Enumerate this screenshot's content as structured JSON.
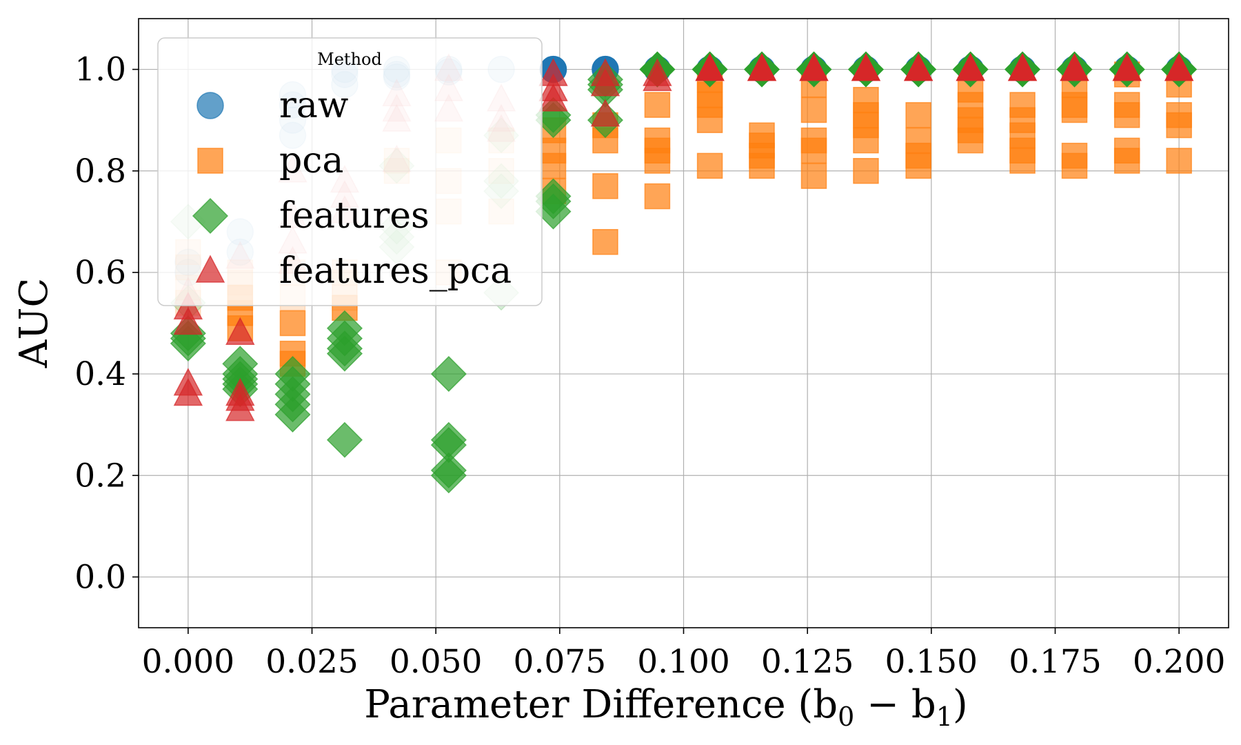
{
  "chart_data": {
    "type": "scatter",
    "xlabel": "Parameter Difference (b",
    "xlabel_sub0": "0",
    "xlabel_minus": " − b",
    "xlabel_sub1": "1",
    "xlabel_close": ")",
    "ylabel": "AUC",
    "xlim": [
      -0.01,
      0.21
    ],
    "ylim": [
      -0.1,
      1.1
    ],
    "xticks": [
      0.0,
      0.025,
      0.05,
      0.075,
      0.1,
      0.125,
      0.15,
      0.175,
      0.2
    ],
    "xtick_labels": [
      "0.000",
      "0.025",
      "0.050",
      "0.075",
      "0.100",
      "0.125",
      "0.150",
      "0.175",
      "0.200"
    ],
    "yticks": [
      0.0,
      0.2,
      0.4,
      0.6,
      0.8,
      1.0
    ],
    "ytick_labels": [
      "0.0",
      "0.2",
      "0.4",
      "0.6",
      "0.8",
      "1.0"
    ],
    "grid": true,
    "legend": {
      "title": "Method",
      "placement": "upper-left",
      "entries": [
        "raw",
        "pca",
        "features",
        "features_pca"
      ]
    },
    "series": [
      {
        "name": "raw",
        "marker": "circle",
        "color": "#1f77b4",
        "points": [
          [
            0.0,
            0.62,
            0.2
          ],
          [
            0.0,
            0.6,
            0.2
          ],
          [
            0.0105,
            0.68,
            0.2
          ],
          [
            0.0105,
            0.64,
            0.2
          ],
          [
            0.0211,
            0.93,
            0.2
          ],
          [
            0.0211,
            0.9,
            0.2
          ],
          [
            0.0211,
            0.87,
            0.2
          ],
          [
            0.0211,
            0.95,
            0.2
          ],
          [
            0.0316,
            0.99,
            0.2
          ],
          [
            0.0316,
            0.97,
            0.2
          ],
          [
            0.0316,
            1.0,
            0.2
          ],
          [
            0.0421,
            1.0,
            0.2
          ],
          [
            0.0421,
            0.99,
            0.2
          ],
          [
            0.0421,
            0.985,
            0.2
          ],
          [
            0.0526,
            1.0,
            0.2
          ],
          [
            0.0526,
            0.995,
            0.2
          ],
          [
            0.0632,
            1.0,
            0.2
          ],
          [
            0.0737,
            1.0,
            1.0
          ],
          [
            0.0842,
            1.0,
            1.0
          ],
          [
            0.0947,
            1.0,
            1.0
          ],
          [
            0.1053,
            1.0,
            1.0
          ],
          [
            0.1158,
            1.0,
            1.0
          ],
          [
            0.1263,
            1.0,
            1.0
          ],
          [
            0.1368,
            1.0,
            1.0
          ],
          [
            0.1474,
            1.0,
            1.0
          ],
          [
            0.1579,
            1.0,
            1.0
          ],
          [
            0.1684,
            1.0,
            1.0
          ],
          [
            0.1789,
            1.0,
            1.0
          ],
          [
            0.1895,
            1.0,
            1.0
          ],
          [
            0.2,
            1.0,
            1.0
          ]
        ]
      },
      {
        "name": "pca",
        "marker": "square",
        "color": "#ff7f0e",
        "points": [
          [
            0.0,
            0.64,
            0.2
          ],
          [
            0.0,
            0.61,
            0.2
          ],
          [
            0.0,
            0.57,
            0.2
          ],
          [
            0.0,
            0.54,
            0.2
          ],
          [
            0.0105,
            0.55,
            0.7
          ],
          [
            0.0105,
            0.52,
            0.7
          ],
          [
            0.0105,
            0.49,
            0.7
          ],
          [
            0.0105,
            0.58,
            0.2
          ],
          [
            0.0105,
            0.6,
            0.2
          ],
          [
            0.0211,
            0.5,
            0.7
          ],
          [
            0.0211,
            0.44,
            0.7
          ],
          [
            0.0211,
            0.42,
            0.7
          ],
          [
            0.0211,
            0.55,
            0.2
          ],
          [
            0.0211,
            0.6,
            0.2
          ],
          [
            0.0316,
            0.53,
            0.7
          ],
          [
            0.0316,
            0.58,
            0.2
          ],
          [
            0.0316,
            0.6,
            0.2
          ],
          [
            0.0316,
            0.55,
            0.2
          ],
          [
            0.0421,
            0.82,
            0.2
          ],
          [
            0.0421,
            0.8,
            0.2
          ],
          [
            0.0526,
            0.86,
            0.2
          ],
          [
            0.0526,
            0.78,
            0.2
          ],
          [
            0.0526,
            0.72,
            0.2
          ],
          [
            0.0526,
            0.6,
            0.2
          ],
          [
            0.0632,
            0.86,
            0.2
          ],
          [
            0.0632,
            0.8,
            0.2
          ],
          [
            0.0632,
            0.72,
            0.2
          ],
          [
            0.0737,
            0.88,
            0.7
          ],
          [
            0.0737,
            0.84,
            0.7
          ],
          [
            0.0737,
            0.81,
            0.7
          ],
          [
            0.0737,
            0.76,
            0.7
          ],
          [
            0.0842,
            0.89,
            0.7
          ],
          [
            0.0842,
            0.86,
            0.7
          ],
          [
            0.0842,
            0.77,
            0.7
          ],
          [
            0.0842,
            0.66,
            0.7
          ],
          [
            0.0947,
            0.93,
            0.7
          ],
          [
            0.0947,
            0.86,
            0.7
          ],
          [
            0.0947,
            0.84,
            0.7
          ],
          [
            0.0947,
            0.82,
            0.7
          ],
          [
            0.0947,
            0.75,
            0.7
          ],
          [
            0.1053,
            0.98,
            0.7
          ],
          [
            0.1053,
            0.95,
            0.7
          ],
          [
            0.1053,
            0.93,
            0.7
          ],
          [
            0.1053,
            0.9,
            0.7
          ],
          [
            0.1053,
            0.81,
            0.7
          ],
          [
            0.1158,
            0.87,
            0.7
          ],
          [
            0.1158,
            0.85,
            0.7
          ],
          [
            0.1158,
            0.83,
            0.7
          ],
          [
            0.1158,
            0.81,
            0.7
          ],
          [
            0.1263,
            0.97,
            0.7
          ],
          [
            0.1263,
            0.92,
            0.7
          ],
          [
            0.1263,
            0.86,
            0.7
          ],
          [
            0.1263,
            0.84,
            0.7
          ],
          [
            0.1263,
            0.79,
            0.7
          ],
          [
            0.1368,
            0.94,
            0.7
          ],
          [
            0.1368,
            0.91,
            0.7
          ],
          [
            0.1368,
            0.89,
            0.7
          ],
          [
            0.1368,
            0.86,
            0.7
          ],
          [
            0.1368,
            0.8,
            0.7
          ],
          [
            0.1474,
            0.91,
            0.7
          ],
          [
            0.1474,
            0.86,
            0.7
          ],
          [
            0.1474,
            0.83,
            0.7
          ],
          [
            0.1474,
            0.81,
            0.7
          ],
          [
            0.1579,
            0.96,
            0.7
          ],
          [
            0.1579,
            0.93,
            0.7
          ],
          [
            0.1579,
            0.9,
            0.7
          ],
          [
            0.1579,
            0.88,
            0.7
          ],
          [
            0.1579,
            0.86,
            0.7
          ],
          [
            0.1684,
            0.93,
            0.7
          ],
          [
            0.1684,
            0.9,
            0.7
          ],
          [
            0.1684,
            0.87,
            0.7
          ],
          [
            0.1684,
            0.84,
            0.7
          ],
          [
            0.1684,
            0.82,
            0.7
          ],
          [
            0.1789,
            0.97,
            0.7
          ],
          [
            0.1789,
            0.93,
            0.7
          ],
          [
            0.1789,
            0.92,
            0.7
          ],
          [
            0.1789,
            0.83,
            0.7
          ],
          [
            0.1789,
            0.81,
            0.7
          ],
          [
            0.1895,
            0.99,
            0.7
          ],
          [
            0.1895,
            0.93,
            0.7
          ],
          [
            0.1895,
            0.91,
            0.7
          ],
          [
            0.1895,
            0.84,
            0.7
          ],
          [
            0.1895,
            0.82,
            0.7
          ],
          [
            0.2,
            0.97,
            0.7
          ],
          [
            0.2,
            0.91,
            0.7
          ],
          [
            0.2,
            0.89,
            0.7
          ],
          [
            0.2,
            0.82,
            0.7
          ]
        ]
      },
      {
        "name": "features",
        "marker": "diamond",
        "color": "#2ca02c",
        "points": [
          [
            0.0,
            0.7,
            0.2
          ],
          [
            0.0,
            0.54,
            0.2
          ],
          [
            0.0,
            0.48,
            0.7
          ],
          [
            0.0,
            0.47,
            0.7
          ],
          [
            0.0,
            0.46,
            0.7
          ],
          [
            0.0105,
            0.42,
            0.7
          ],
          [
            0.0105,
            0.4,
            0.7
          ],
          [
            0.0105,
            0.39,
            0.7
          ],
          [
            0.0105,
            0.38,
            0.7
          ],
          [
            0.0105,
            0.37,
            0.7
          ],
          [
            0.0211,
            0.4,
            0.7
          ],
          [
            0.0211,
            0.38,
            0.7
          ],
          [
            0.0211,
            0.36,
            0.7
          ],
          [
            0.0211,
            0.34,
            0.7
          ],
          [
            0.0211,
            0.32,
            0.7
          ],
          [
            0.0316,
            0.49,
            0.7
          ],
          [
            0.0316,
            0.47,
            0.7
          ],
          [
            0.0316,
            0.45,
            0.7
          ],
          [
            0.0316,
            0.44,
            0.7
          ],
          [
            0.0316,
            0.27,
            0.7
          ],
          [
            0.0421,
            0.81,
            0.2
          ],
          [
            0.0421,
            0.69,
            0.2
          ],
          [
            0.0421,
            0.67,
            0.2
          ],
          [
            0.0421,
            0.65,
            0.2
          ],
          [
            0.0526,
            0.4,
            0.7
          ],
          [
            0.0526,
            0.27,
            0.7
          ],
          [
            0.0526,
            0.26,
            0.7
          ],
          [
            0.0526,
            0.21,
            0.7
          ],
          [
            0.0526,
            0.2,
            0.7
          ],
          [
            0.0632,
            0.87,
            0.2
          ],
          [
            0.0632,
            0.78,
            0.2
          ],
          [
            0.0632,
            0.76,
            0.2
          ],
          [
            0.0632,
            0.56,
            0.2
          ],
          [
            0.0737,
            0.91,
            0.7
          ],
          [
            0.0737,
            0.9,
            0.7
          ],
          [
            0.0737,
            0.75,
            0.7
          ],
          [
            0.0737,
            0.74,
            0.7
          ],
          [
            0.0737,
            0.72,
            0.7
          ],
          [
            0.0842,
            0.98,
            0.7
          ],
          [
            0.0842,
            0.97,
            0.7
          ],
          [
            0.0842,
            0.96,
            0.7
          ],
          [
            0.0842,
            0.9,
            0.7
          ],
          [
            0.0947,
            1.0,
            1.0
          ],
          [
            0.1053,
            1.0,
            1.0
          ],
          [
            0.1158,
            1.0,
            1.0
          ],
          [
            0.1263,
            1.0,
            1.0
          ],
          [
            0.1368,
            1.0,
            1.0
          ],
          [
            0.1474,
            1.0,
            1.0
          ],
          [
            0.1579,
            1.0,
            1.0
          ],
          [
            0.1684,
            1.0,
            1.0
          ],
          [
            0.1789,
            1.0,
            1.0
          ],
          [
            0.1895,
            1.0,
            1.0
          ],
          [
            0.2,
            1.0,
            1.0
          ]
        ]
      },
      {
        "name": "features_pca",
        "marker": "triangle",
        "color": "#d62728",
        "points": [
          [
            0.0,
            0.56,
            0.2
          ],
          [
            0.0,
            0.53,
            0.7
          ],
          [
            0.0,
            0.5,
            0.7
          ],
          [
            0.0,
            0.38,
            0.7
          ],
          [
            0.0,
            0.36,
            0.7
          ],
          [
            0.0105,
            0.63,
            0.2
          ],
          [
            0.0105,
            0.48,
            0.7
          ],
          [
            0.0105,
            0.36,
            0.7
          ],
          [
            0.0105,
            0.35,
            0.7
          ],
          [
            0.0105,
            0.33,
            0.7
          ],
          [
            0.0211,
            0.8,
            0.2
          ],
          [
            0.0211,
            0.71,
            0.2
          ],
          [
            0.0211,
            0.66,
            0.2
          ],
          [
            0.0211,
            0.62,
            0.2
          ],
          [
            0.0316,
            0.78,
            0.2
          ],
          [
            0.0316,
            0.75,
            0.2
          ],
          [
            0.0316,
            0.72,
            0.2
          ],
          [
            0.0421,
            0.95,
            0.2
          ],
          [
            0.0421,
            0.92,
            0.2
          ],
          [
            0.0421,
            0.9,
            0.2
          ],
          [
            0.0421,
            0.82,
            0.2
          ],
          [
            0.0526,
            1.0,
            0.2
          ],
          [
            0.0526,
            0.96,
            0.2
          ],
          [
            0.0526,
            0.92,
            0.2
          ],
          [
            0.0632,
            0.94,
            0.2
          ],
          [
            0.0632,
            0.9,
            0.2
          ],
          [
            0.0632,
            0.88,
            0.2
          ],
          [
            0.0737,
            0.99,
            0.7
          ],
          [
            0.0737,
            0.96,
            0.7
          ],
          [
            0.0737,
            0.94,
            0.7
          ],
          [
            0.0842,
            0.99,
            0.7
          ],
          [
            0.0842,
            0.97,
            0.7
          ],
          [
            0.0842,
            0.91,
            0.7
          ],
          [
            0.0947,
            0.99,
            0.7
          ],
          [
            0.0947,
            0.98,
            0.7
          ],
          [
            0.1053,
            1.0,
            1.0
          ],
          [
            0.1158,
            1.0,
            1.0
          ],
          [
            0.1263,
            1.0,
            1.0
          ],
          [
            0.1368,
            1.0,
            1.0
          ],
          [
            0.1474,
            1.0,
            1.0
          ],
          [
            0.1579,
            1.0,
            1.0
          ],
          [
            0.1684,
            1.0,
            1.0
          ],
          [
            0.1789,
            1.0,
            1.0
          ],
          [
            0.1895,
            1.0,
            1.0
          ],
          [
            0.2,
            1.0,
            1.0
          ]
        ]
      }
    ]
  }
}
